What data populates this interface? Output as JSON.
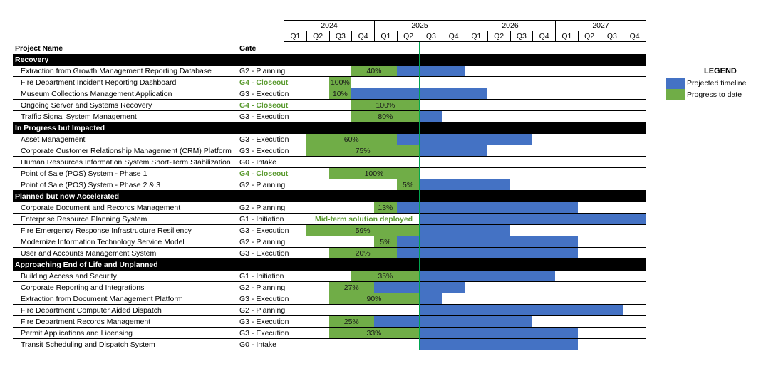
{
  "chart_data": {
    "type": "gantt",
    "years": [
      "2024",
      "2025",
      "2026",
      "2027"
    ],
    "quarters": [
      "Q1",
      "Q2",
      "Q3",
      "Q4"
    ],
    "headers": {
      "project": "Project Name",
      "gate": "Gate"
    },
    "legend": {
      "title": "LEGEND",
      "items": [
        {
          "label": "Projected timeline",
          "color": "#4472c4"
        },
        {
          "label": "Progress to date",
          "color": "#70ad47"
        }
      ]
    },
    "today_marker": {
      "year": 2025,
      "quarter": 2,
      "position": "end"
    },
    "categories": [
      {
        "name": "Recovery",
        "projects": [
          {
            "name": "Extraction from Growth Management Reporting Database",
            "gate": "G2 - Planning",
            "closeout": false,
            "progress_label": "40%",
            "green": [
              3,
              5
            ],
            "blue": [
              5,
              8
            ]
          },
          {
            "name": "Fire Department Incident Reporting Dashboard",
            "gate": "G4 - Closeout",
            "closeout": true,
            "progress_label": "100%",
            "green": [
              2,
              3
            ],
            "blue": null
          },
          {
            "name": "Museum Collections Management Application",
            "gate": "G3 - Execution",
            "closeout": false,
            "progress_label": "10%",
            "green": [
              2,
              3
            ],
            "blue": [
              3,
              9
            ]
          },
          {
            "name": "Ongoing Server and Systems Recovery",
            "gate": "G4 - Closeout",
            "closeout": true,
            "progress_label": "100%",
            "green": [
              3,
              6
            ],
            "blue": null
          },
          {
            "name": "Traffic Signal System Management",
            "gate": "G3 - Execution",
            "closeout": false,
            "progress_label": "80%",
            "green": [
              3,
              6
            ],
            "blue": [
              6,
              7
            ]
          }
        ]
      },
      {
        "name": "In Progress but Impacted",
        "projects": [
          {
            "name": "Asset Management",
            "gate": "G3 - Execution",
            "closeout": false,
            "progress_label": "60%",
            "green": [
              1,
              5
            ],
            "blue": [
              5,
              11
            ]
          },
          {
            "name": "Corporate Customer Relationship Management (CRM) Platform",
            "gate": "G3 - Execution",
            "closeout": false,
            "progress_label": "75%",
            "green": [
              1,
              6
            ],
            "blue": [
              6,
              9
            ]
          },
          {
            "name": "Human Resources Information System Short-Term Stabilization",
            "gate": "G0 - Intake",
            "closeout": false,
            "progress_label": "",
            "green": null,
            "blue": null
          },
          {
            "name": "Point of Sale (POS) System - Phase 1",
            "gate": "G4 - Closeout",
            "closeout": true,
            "progress_label": "100%",
            "green": [
              2,
              6
            ],
            "blue": null
          },
          {
            "name": "Point of Sale (POS) System - Phase 2 & 3",
            "gate": "G2 - Planning",
            "closeout": false,
            "progress_label": "5%",
            "green": [
              5,
              6
            ],
            "blue": [
              6,
              10
            ]
          }
        ]
      },
      {
        "name": "Planned but now Accelerated",
        "projects": [
          {
            "name": "Corporate Document and Records Management",
            "gate": "G2 - Planning",
            "closeout": false,
            "progress_label": "13%",
            "green": [
              4,
              5
            ],
            "blue": [
              5,
              13
            ]
          },
          {
            "name": "Enterprise Resource Planning System",
            "gate": "G1 - Initiation",
            "closeout": false,
            "progress_label": "",
            "annotation": "Mid-term solution deployed",
            "green": null,
            "blue": [
              6,
              16
            ]
          },
          {
            "name": "Fire Emergency Response Infrastructure Resiliency",
            "gate": "G3 - Execution",
            "closeout": false,
            "progress_label": "59%",
            "green": [
              1,
              6
            ],
            "blue": [
              6,
              10
            ]
          },
          {
            "name": "Modernize Information Technology Service Model",
            "gate": "G2 - Planning",
            "closeout": false,
            "progress_label": "5%",
            "green": [
              4,
              5
            ],
            "blue": [
              5,
              13
            ]
          },
          {
            "name": "User and Accounts Management System",
            "gate": "G3 - Execution",
            "closeout": false,
            "progress_label": "20%",
            "green": [
              2,
              5
            ],
            "blue": [
              5,
              13
            ]
          }
        ]
      },
      {
        "name": "Approaching End of Life and Unplanned",
        "projects": [
          {
            "name": "Building Access and Security",
            "gate": "G1 - Initiation",
            "closeout": false,
            "progress_label": "35%",
            "green": [
              3,
              6
            ],
            "blue": [
              6,
              12
            ]
          },
          {
            "name": "Corporate Reporting and Integrations",
            "gate": "G2 - Planning",
            "closeout": false,
            "progress_label": "27%",
            "green": [
              2,
              4
            ],
            "blue": [
              4,
              8
            ]
          },
          {
            "name": "Extraction from Document Management Platform",
            "gate": "G3 - Execution",
            "closeout": false,
            "progress_label": "90%",
            "green": [
              2,
              6
            ],
            "blue": [
              6,
              7
            ]
          },
          {
            "name": "Fire Department Computer Aided Dispatch",
            "gate": "G2 - Planning",
            "closeout": false,
            "progress_label": "",
            "green": null,
            "blue": [
              6,
              15
            ]
          },
          {
            "name": "Fire Department Records Management",
            "gate": "G3 - Execution",
            "closeout": false,
            "progress_label": "25%",
            "green": [
              2,
              4
            ],
            "blue": [
              4,
              11
            ]
          },
          {
            "name": "Permit Applications and Licensing",
            "gate": "G3 - Execution",
            "closeout": false,
            "progress_label": "33%",
            "green": [
              2,
              6
            ],
            "blue": [
              6,
              13
            ]
          },
          {
            "name": "Transit Scheduling and Dispatch System",
            "gate": "G0 - Intake",
            "closeout": false,
            "progress_label": "",
            "green": null,
            "blue": [
              6,
              13
            ]
          }
        ]
      }
    ]
  }
}
